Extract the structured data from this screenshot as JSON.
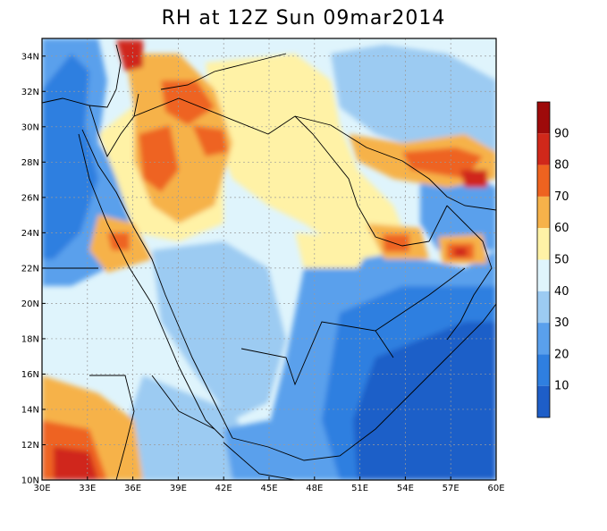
{
  "title": "RH at 12Z Sun 09mar2014",
  "map": {
    "lon_range": [
      30,
      60
    ],
    "lat_range": [
      10,
      35
    ],
    "lon_ticks": [
      "30E",
      "33E",
      "36E",
      "39E",
      "42E",
      "45E",
      "48E",
      "51E",
      "54E",
      "57E",
      "60E"
    ],
    "lat_ticks": [
      "10N",
      "12N",
      "14N",
      "16N",
      "18N",
      "20N",
      "22N",
      "24N",
      "26N",
      "28N",
      "30N",
      "32N",
      "34N"
    ],
    "grid": "dotted",
    "variable": "relative humidity"
  },
  "colorbar": {
    "labels": [
      "10",
      "20",
      "30",
      "40",
      "50",
      "60",
      "70",
      "80",
      "90"
    ],
    "colors": [
      "#1e5ec8",
      "#2f7fe0",
      "#5aa0ec",
      "#9ccbf2",
      "#dff4fc",
      "#fff2a6",
      "#f6b24a",
      "#ee6320",
      "#d0281a",
      "#9e0a0a"
    ]
  },
  "colors": {
    "frame": "#000000",
    "grid": "#9a9a9a"
  }
}
